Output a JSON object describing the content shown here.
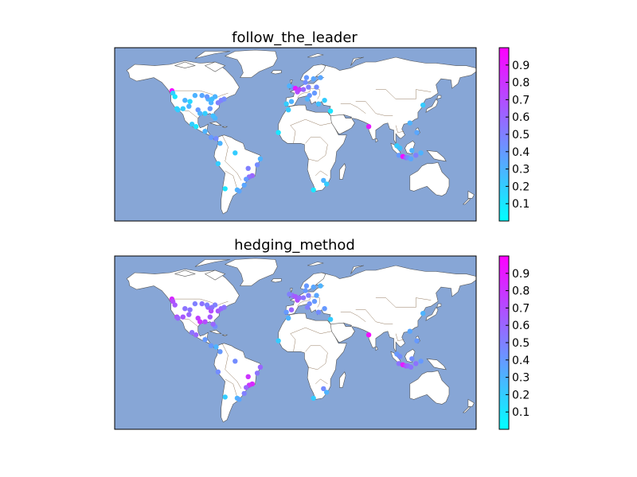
{
  "figure": {
    "panels": [
      {
        "title": "follow_the_leader"
      },
      {
        "title": "hedging_method"
      }
    ]
  },
  "colors": {
    "ocean": "#87a6d6",
    "land": "#ffffff",
    "coast": "#555555",
    "border": "#7a5a3a",
    "colormap": [
      "#00ffff",
      "#ff00ff"
    ]
  },
  "colorbar": {
    "ticks": [
      "0.1",
      "0.2",
      "0.3",
      "0.4",
      "0.5",
      "0.6",
      "0.7",
      "0.8",
      "0.9"
    ],
    "range": [
      0.0,
      1.0
    ]
  },
  "chart_data": [
    {
      "type": "scatter",
      "title": "follow_the_leader",
      "description_of_points": "longitude, latitude, value",
      "points": [
        [
          -123,
          49,
          0.95
        ],
        [
          -122,
          47,
          0.2
        ],
        [
          -120,
          44,
          0.1
        ],
        [
          -118,
          34,
          0.15
        ],
        [
          -117,
          33,
          0.2
        ],
        [
          -112,
          34,
          0.2
        ],
        [
          -106,
          36,
          0.3
        ],
        [
          -105,
          40,
          0.15
        ],
        [
          -97,
          33,
          0.4
        ],
        [
          -95,
          30,
          0.3
        ],
        [
          -90,
          30,
          0.2
        ],
        [
          -85,
          34,
          0.4
        ],
        [
          -84,
          39,
          0.3
        ],
        [
          -87,
          42,
          0.3
        ],
        [
          -83,
          42,
          0.25
        ],
        [
          -80,
          44,
          0.3
        ],
        [
          -77,
          39,
          0.5
        ],
        [
          -74,
          41,
          0.5
        ],
        [
          -71,
          42,
          0.45
        ],
        [
          -80,
          26,
          0.3
        ],
        [
          -82,
          28,
          0.25
        ],
        [
          -88,
          44,
          0.4
        ],
        [
          -93,
          45,
          0.35
        ],
        [
          -100,
          45,
          0.3
        ],
        [
          -110,
          41,
          0.3
        ],
        [
          -99,
          19,
          0.1
        ],
        [
          -103,
          21,
          0.2
        ],
        [
          -90,
          15,
          0.3
        ],
        [
          -84,
          10,
          0.4
        ],
        [
          -79,
          9,
          0.45
        ],
        [
          -75,
          5,
          0.3
        ],
        [
          -77,
          -12,
          0.2
        ],
        [
          -70,
          -33,
          0.1
        ],
        [
          -58,
          -34,
          0.3
        ],
        [
          -56,
          -35,
          0.35
        ],
        [
          -47,
          -16,
          0.5
        ],
        [
          -43,
          -22,
          0.6
        ],
        [
          -46,
          -23,
          0.55
        ],
        [
          -49,
          -25,
          0.4
        ],
        [
          -51,
          -30,
          0.35
        ],
        [
          -38,
          -13,
          0.45
        ],
        [
          -35,
          -8,
          0.3
        ],
        [
          -60,
          -3,
          0.2
        ],
        [
          -3,
          52,
          0.45
        ],
        [
          0,
          51,
          0.9
        ],
        [
          -6,
          53,
          0.3
        ],
        [
          2,
          48,
          0.7
        ],
        [
          4,
          50,
          0.75
        ],
        [
          8,
          50,
          0.6
        ],
        [
          13,
          52,
          0.5
        ],
        [
          10,
          56,
          0.45
        ],
        [
          18,
          59,
          0.35
        ],
        [
          11,
          60,
          0.4
        ],
        [
          25,
          60,
          0.35
        ],
        [
          14,
          45,
          0.4
        ],
        [
          12,
          42,
          0.3
        ],
        [
          -4,
          40,
          0.3
        ],
        [
          -9,
          38,
          0.2
        ],
        [
          23,
          38,
          0.25
        ],
        [
          29,
          41,
          0.2
        ],
        [
          21,
          52,
          0.45
        ],
        [
          19,
          47,
          0.4
        ],
        [
          35,
          32,
          0.1
        ],
        [
          -7,
          33,
          0.2
        ],
        [
          -17,
          14,
          0.1
        ],
        [
          73,
          19,
          0.9
        ],
        [
          101,
          3,
          0.2
        ],
        [
          104,
          1,
          0.25
        ],
        [
          103,
          -5,
          0.4
        ],
        [
          107,
          -6,
          0.95
        ],
        [
          110,
          -7,
          0.6
        ],
        [
          112,
          -7,
          0.45
        ],
        [
          115,
          -8,
          0.35
        ],
        [
          120,
          -5,
          0.5
        ],
        [
          125,
          -3,
          0.3
        ],
        [
          116,
          -1,
          0.3
        ],
        [
          121,
          14,
          0.35
        ],
        [
          114,
          22,
          0.3
        ],
        [
          127,
          37,
          0.2
        ],
        [
          28,
          -26,
          0.3
        ],
        [
          18,
          -34,
          0.1
        ],
        [
          31,
          -29,
          0.2
        ]
      ]
    },
    {
      "type": "scatter",
      "title": "hedging_method",
      "description_of_points": "longitude, latitude, value",
      "points": [
        [
          -123,
          49,
          0.85
        ],
        [
          -122,
          47,
          0.7
        ],
        [
          -120,
          44,
          0.65
        ],
        [
          -118,
          34,
          0.7
        ],
        [
          -117,
          33,
          0.6
        ],
        [
          -112,
          34,
          0.65
        ],
        [
          -106,
          36,
          0.6
        ],
        [
          -105,
          40,
          0.55
        ],
        [
          -97,
          33,
          0.75
        ],
        [
          -95,
          30,
          0.8
        ],
        [
          -90,
          30,
          0.7
        ],
        [
          -85,
          34,
          0.65
        ],
        [
          -84,
          39,
          0.7
        ],
        [
          -87,
          42,
          0.6
        ],
        [
          -83,
          42,
          0.55
        ],
        [
          -80,
          44,
          0.5
        ],
        [
          -77,
          39,
          0.65
        ],
        [
          -74,
          41,
          0.6
        ],
        [
          -71,
          42,
          0.55
        ],
        [
          -80,
          26,
          0.45
        ],
        [
          -82,
          28,
          0.6
        ],
        [
          -88,
          44,
          0.5
        ],
        [
          -93,
          45,
          0.55
        ],
        [
          -100,
          45,
          0.5
        ],
        [
          -110,
          41,
          0.55
        ],
        [
          -99,
          19,
          0.6
        ],
        [
          -103,
          21,
          0.55
        ],
        [
          -90,
          15,
          0.4
        ],
        [
          -84,
          10,
          0.4
        ],
        [
          -79,
          9,
          0.3
        ],
        [
          -75,
          5,
          0.4
        ],
        [
          -77,
          -12,
          0.45
        ],
        [
          -70,
          -33,
          0.2
        ],
        [
          -58,
          -34,
          0.3
        ],
        [
          -56,
          -35,
          0.35
        ],
        [
          -47,
          -16,
          0.8
        ],
        [
          -43,
          -22,
          0.85
        ],
        [
          -46,
          -23,
          0.8
        ],
        [
          -49,
          -25,
          0.6
        ],
        [
          -51,
          -30,
          0.5
        ],
        [
          -38,
          -13,
          0.55
        ],
        [
          -35,
          -8,
          0.6
        ],
        [
          -60,
          -3,
          0.45
        ],
        [
          -3,
          52,
          0.6
        ],
        [
          0,
          51,
          0.65
        ],
        [
          -6,
          53,
          0.5
        ],
        [
          2,
          48,
          0.7
        ],
        [
          4,
          50,
          0.6
        ],
        [
          8,
          50,
          0.55
        ],
        [
          13,
          52,
          0.5
        ],
        [
          10,
          56,
          0.4
        ],
        [
          18,
          59,
          0.35
        ],
        [
          11,
          60,
          0.4
        ],
        [
          25,
          60,
          0.3
        ],
        [
          14,
          45,
          0.45
        ],
        [
          12,
          42,
          0.5
        ],
        [
          -4,
          40,
          0.6
        ],
        [
          -9,
          38,
          0.4
        ],
        [
          23,
          38,
          0.45
        ],
        [
          29,
          41,
          0.4
        ],
        [
          21,
          52,
          0.35
        ],
        [
          19,
          47,
          0.4
        ],
        [
          35,
          32,
          0.2
        ],
        [
          -7,
          33,
          0.3
        ],
        [
          -17,
          14,
          0.2
        ],
        [
          73,
          19,
          0.95
        ],
        [
          101,
          3,
          0.4
        ],
        [
          104,
          1,
          0.45
        ],
        [
          103,
          -5,
          0.55
        ],
        [
          107,
          -6,
          0.9
        ],
        [
          110,
          -7,
          0.7
        ],
        [
          112,
          -7,
          0.6
        ],
        [
          115,
          -8,
          0.55
        ],
        [
          120,
          -5,
          0.55
        ],
        [
          125,
          -3,
          0.4
        ],
        [
          116,
          -1,
          0.45
        ],
        [
          121,
          14,
          0.4
        ],
        [
          114,
          22,
          0.35
        ],
        [
          127,
          37,
          0.3
        ],
        [
          28,
          -26,
          0.45
        ],
        [
          18,
          -34,
          0.2
        ],
        [
          31,
          -29,
          0.3
        ]
      ]
    }
  ]
}
